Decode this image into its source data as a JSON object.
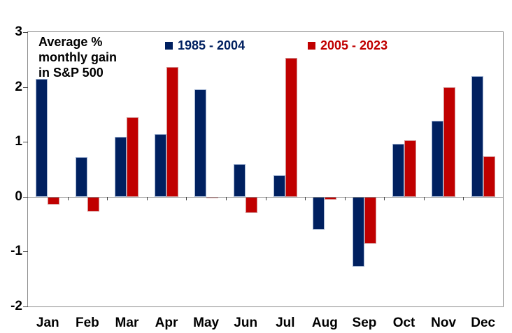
{
  "chart_data": {
    "type": "bar",
    "title_lines": [
      "Average %",
      "monthly gain",
      "in S&P 500"
    ],
    "categories": [
      "Jan",
      "Feb",
      "Mar",
      "Apr",
      "May",
      "Jun",
      "Jul",
      "Aug",
      "Sep",
      "Oct",
      "Nov",
      "Dec"
    ],
    "series": [
      {
        "name": "1985 - 2004",
        "color": "#002060",
        "border_color": "#9FB2D1",
        "values": [
          2.15,
          0.72,
          1.09,
          1.14,
          1.96,
          0.6,
          0.39,
          -0.6,
          -1.28,
          0.96,
          1.38,
          2.2
        ]
      },
      {
        "name": "2005 - 2023",
        "color": "#C00000",
        "border_color": "#D08A8A",
        "values": [
          -0.14,
          -0.27,
          1.45,
          2.36,
          -0.03,
          -0.3,
          2.53,
          -0.05,
          -0.86,
          1.03,
          2.0,
          0.74
        ]
      }
    ],
    "ylim": [
      -2,
      3
    ],
    "yticks": [
      3,
      2,
      1,
      0,
      -1,
      -2
    ],
    "grid": false,
    "legend_position": "top",
    "frame_color": "#8c8c8c"
  }
}
